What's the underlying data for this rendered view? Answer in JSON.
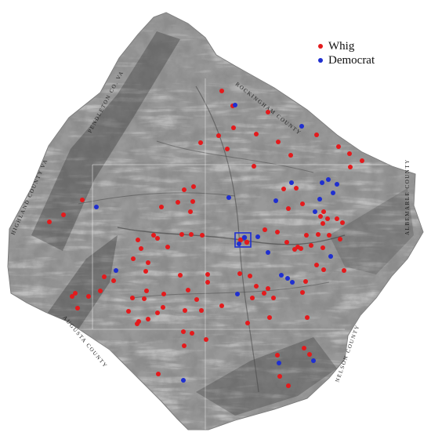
{
  "legend": {
    "items": [
      {
        "label": "Whig",
        "color": "#e41a1c"
      },
      {
        "label": "Democrat",
        "color": "#1f2fd0"
      }
    ]
  },
  "map": {
    "terrain_color": "#3a3a3a",
    "courthouse_marker_color": "#1f2fd0",
    "boundary_labels": [
      "PENDLETON CO. VA",
      "ROCKINGHAM COUNTY",
      "HIGHLAND COUNTY VA",
      "ALBEMARLE COUNTY",
      "NELSON COUNTY",
      "AUGUSTA COUNTY"
    ]
  }
}
